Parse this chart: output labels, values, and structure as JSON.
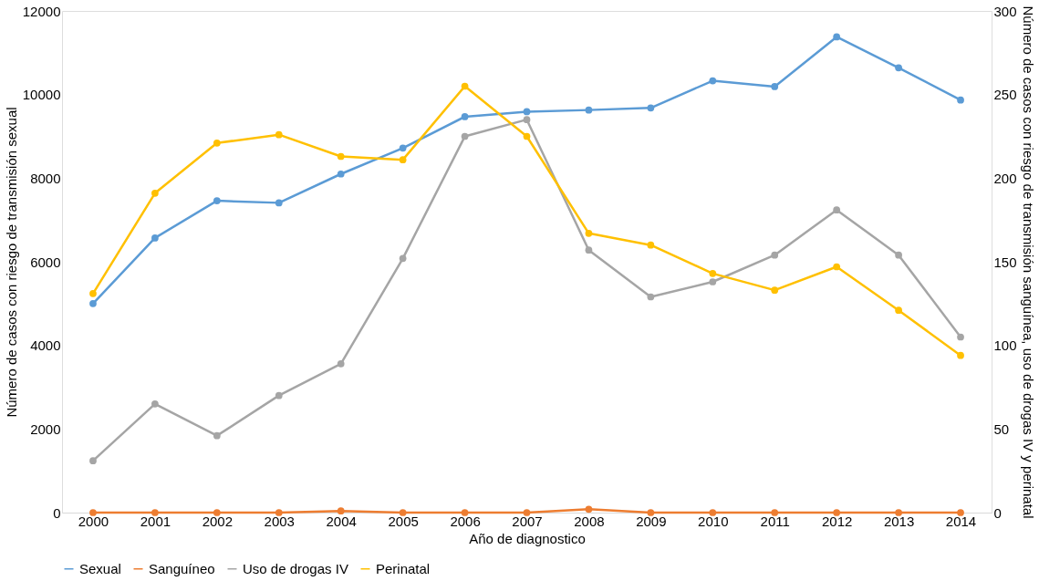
{
  "chart_data": {
    "type": "line",
    "xlabel": "Año de diagnostico",
    "ylabel": "Número de casos con riesgo de transmisión sexual",
    "y2label": "Número de casos con riesgo de transmisión sanguínea, uso de drogas IV y perinatal",
    "categories": [
      "2000",
      "2001",
      "2002",
      "2003",
      "2004",
      "2005",
      "2006",
      "2007",
      "2008",
      "2009",
      "2010",
      "2011",
      "2012",
      "2013",
      "2014"
    ],
    "ylim": [
      0,
      12000
    ],
    "yticks": [
      0,
      2000,
      4000,
      6000,
      8000,
      10000,
      12000
    ],
    "y2lim": [
      0,
      300
    ],
    "y2ticks": [
      0,
      50,
      100,
      150,
      200,
      250,
      300
    ],
    "grid": false,
    "legend": "bottom",
    "marker": "circle",
    "line_style": "solid",
    "series": [
      {
        "name": "Sexual",
        "color": "#5b9bd5",
        "values": [
          5000,
          6570,
          7460,
          7410,
          8100,
          8720,
          9470,
          9590,
          9630,
          9680,
          10330,
          10190,
          11380,
          10640,
          9870
        ]
      },
      {
        "name": "Sanguíneo",
        "color": "#ed7d31",
        "axis": "y2",
        "values": [
          0,
          0,
          0,
          0,
          1,
          0,
          0,
          0,
          2,
          0,
          0,
          0,
          0,
          0,
          0
        ]
      },
      {
        "name": "Uso de drogas IV",
        "color": "#a5a5a5",
        "axis": "y2",
        "values": [
          31,
          65,
          46,
          70,
          89,
          152,
          225,
          235,
          157,
          129,
          138,
          154,
          181,
          154,
          105
        ]
      },
      {
        "name": "Perinatal",
        "color": "#ffc000",
        "axis": "y2",
        "values": [
          131,
          191,
          221,
          226,
          213,
          211,
          255,
          225,
          167,
          160,
          143,
          133,
          147,
          121,
          94
        ]
      }
    ]
  }
}
